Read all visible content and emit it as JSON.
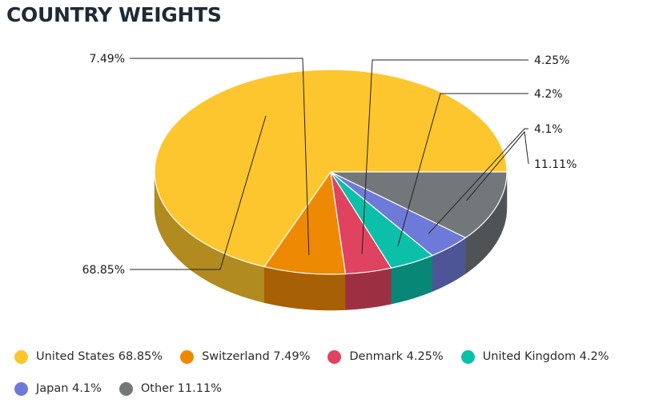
{
  "page": {
    "title": "COUNTRY WEIGHTS"
  },
  "chart_data": {
    "type": "pie",
    "title": "COUNTRY WEIGHTS",
    "categories": [
      "United States",
      "Switzerland",
      "Denmark",
      "United Kingdom",
      "Japan",
      "Other"
    ],
    "values": [
      68.85,
      7.49,
      4.25,
      4.2,
      4.1,
      11.11
    ],
    "value_labels": [
      "68.85%",
      "7.49%",
      "4.25%",
      "4.2%",
      "4.1%",
      "11.11%"
    ],
    "legend_labels": [
      "United States 68.85%",
      "Switzerland 7.49%",
      "Denmark 4.25%",
      "United Kingdom 4.2%",
      "Japan 4.1%",
      "Other 11.11%"
    ],
    "colors": [
      "#fdc62e",
      "#ee8904",
      "#e0435f",
      "#0cbfa9",
      "#6e7ad8",
      "#727779"
    ],
    "legend_position": "bottom",
    "style": "3d"
  }
}
